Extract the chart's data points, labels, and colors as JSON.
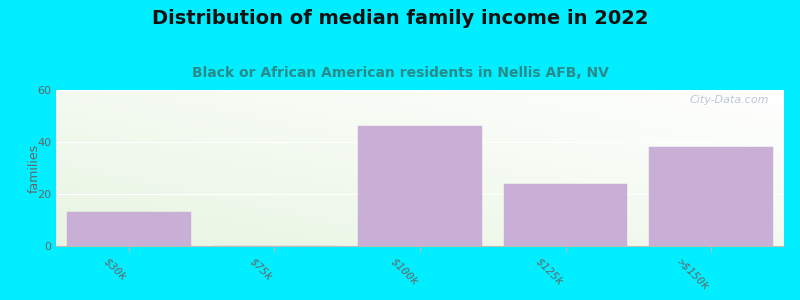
{
  "title": "Distribution of median family income in 2022",
  "subtitle": "Black or African American residents in Nellis AFB, NV",
  "categories": [
    "$30k",
    "$75k",
    "$100k",
    "$125k",
    ">$150k"
  ],
  "values": [
    13,
    0,
    46,
    24,
    38
  ],
  "bar_color": "#c9aed6",
  "bar_edge_color": "#c9aed6",
  "ylabel": "families",
  "ylim": [
    0,
    60
  ],
  "yticks": [
    0,
    20,
    40,
    60
  ],
  "background_color": "#00eeff",
  "plot_bg_topleft": "#e8f5e2",
  "plot_bg_topright": "#f0f4f8",
  "plot_bg_bottom": "#ffffff",
  "title_fontsize": 14,
  "subtitle_fontsize": 10,
  "subtitle_color": "#2a8a8a",
  "watermark": "City-Data.com",
  "xlabel_rotation": -45
}
